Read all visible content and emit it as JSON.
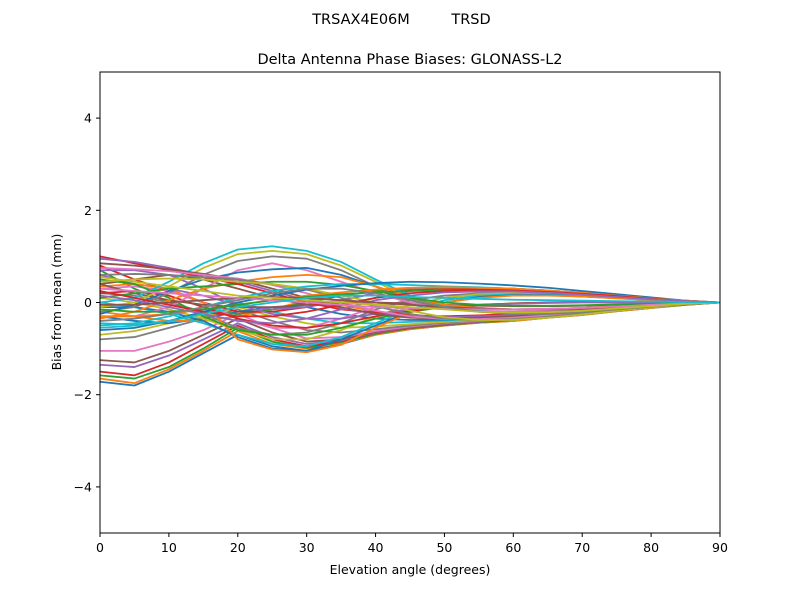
{
  "figure": {
    "suptitle_left": "TRSAX4E06M",
    "suptitle_right": "TRSD"
  },
  "chart_data": {
    "type": "line",
    "title": "Delta Antenna Phase Biases: GLONASS-L2",
    "xlabel": "Elevation angle (degrees)",
    "ylabel": "Bias from mean (mm)",
    "xlim": [
      0,
      90
    ],
    "ylim": [
      -5,
      5
    ],
    "xticks": [
      0,
      10,
      20,
      30,
      40,
      50,
      60,
      70,
      80,
      90
    ],
    "yticks": [
      -4,
      -2,
      0,
      2,
      4
    ],
    "ytick_labels": [
      "−4",
      "−2",
      "0",
      "2",
      "4"
    ],
    "grid": false,
    "legend": "none",
    "x": [
      0,
      5,
      10,
      15,
      20,
      25,
      30,
      35,
      40,
      45,
      50,
      55,
      60,
      65,
      70,
      75,
      80,
      85,
      90
    ],
    "palette": [
      "#1f77b4",
      "#ff7f0e",
      "#2ca02c",
      "#d62728",
      "#9467bd",
      "#8c564b",
      "#e377c2",
      "#7f7f7f",
      "#bcbd22",
      "#17becf"
    ],
    "series": [
      {
        "values": [
          -1.72,
          -1.8,
          -1.5,
          -1.1,
          -0.7,
          -0.95,
          -1.05,
          -0.9,
          -0.7,
          -0.58,
          -0.5,
          -0.44,
          -0.4,
          -0.33,
          -0.27,
          -0.19,
          -0.12,
          -0.05,
          0.0
        ]
      },
      {
        "values": [
          -1.65,
          -1.75,
          -1.45,
          -1.05,
          -0.62,
          -0.9,
          -1.0,
          -0.88,
          -0.7,
          -0.58,
          -0.5,
          -0.44,
          -0.4,
          -0.33,
          -0.27,
          -0.19,
          -0.12,
          -0.05,
          0.0
        ]
      },
      {
        "values": [
          -1.58,
          -1.65,
          -1.4,
          -1.0,
          -0.55,
          -0.85,
          -0.98,
          -0.86,
          -0.68,
          -0.56,
          -0.49,
          -0.43,
          -0.38,
          -0.32,
          -0.26,
          -0.18,
          -0.11,
          -0.05,
          0.0
        ]
      },
      {
        "values": [
          -1.5,
          -1.58,
          -1.3,
          -0.9,
          -0.5,
          -0.8,
          -0.95,
          -0.84,
          -0.66,
          -0.55,
          -0.48,
          -0.42,
          -0.37,
          -0.31,
          -0.25,
          -0.18,
          -0.11,
          -0.04,
          0.0
        ]
      },
      {
        "values": [
          -1.35,
          -1.4,
          -1.15,
          -0.8,
          -0.45,
          -0.75,
          -0.9,
          -0.82,
          -0.65,
          -0.54,
          -0.47,
          -0.42,
          -0.36,
          -0.3,
          -0.24,
          -0.17,
          -0.1,
          -0.04,
          0.0
        ]
      },
      {
        "values": [
          -1.25,
          -1.3,
          -1.05,
          -0.7,
          -0.35,
          -0.65,
          -0.85,
          -0.8,
          -0.64,
          -0.53,
          -0.46,
          -0.41,
          -0.36,
          -0.3,
          -0.24,
          -0.17,
          -0.1,
          -0.04,
          0.0
        ]
      },
      {
        "values": [
          -1.05,
          -1.05,
          -0.85,
          -0.6,
          -0.25,
          -0.55,
          -0.78,
          -0.75,
          -0.62,
          -0.52,
          -0.45,
          -0.4,
          -0.35,
          -0.29,
          -0.23,
          -0.16,
          -0.1,
          -0.04,
          0.0
        ]
      },
      {
        "values": [
          -0.8,
          -0.75,
          -0.55,
          -0.35,
          -0.15,
          -0.4,
          -0.6,
          -0.65,
          -0.58,
          -0.5,
          -0.44,
          -0.39,
          -0.34,
          -0.28,
          -0.22,
          -0.16,
          -0.09,
          -0.04,
          0.0
        ]
      },
      {
        "values": [
          -0.7,
          -0.62,
          -0.45,
          -0.3,
          -0.1,
          -0.3,
          -0.45,
          -0.55,
          -0.52,
          -0.47,
          -0.42,
          -0.38,
          -0.33,
          -0.28,
          -0.22,
          -0.15,
          -0.09,
          -0.04,
          0.0
        ]
      },
      {
        "values": [
          -0.45,
          -0.48,
          -0.4,
          -0.25,
          0.0,
          -0.2,
          -0.35,
          -0.45,
          -0.45,
          -0.42,
          -0.39,
          -0.35,
          -0.31,
          -0.26,
          -0.21,
          -0.15,
          -0.09,
          -0.03,
          0.0
        ]
      },
      {
        "values": [
          -0.3,
          -0.4,
          -0.45,
          -0.35,
          -0.2,
          -0.1,
          -0.1,
          -0.25,
          -0.35,
          -0.38,
          -0.37,
          -0.34,
          -0.3,
          -0.25,
          -0.2,
          -0.14,
          -0.08,
          -0.03,
          0.0
        ]
      },
      {
        "values": [
          -0.2,
          -0.3,
          -0.4,
          -0.4,
          -0.3,
          -0.15,
          0.05,
          -0.05,
          -0.2,
          -0.3,
          -0.33,
          -0.32,
          -0.29,
          -0.25,
          -0.2,
          -0.14,
          -0.08,
          -0.03,
          0.0
        ]
      },
      {
        "values": [
          0.7,
          0.3,
          0.0,
          -0.2,
          -0.25,
          -0.15,
          0.0,
          0.15,
          0.25,
          0.3,
          0.3,
          0.28,
          0.25,
          0.21,
          0.17,
          0.12,
          0.07,
          0.03,
          0.0
        ]
      },
      {
        "values": [
          0.8,
          0.5,
          0.25,
          0.0,
          -0.2,
          -0.2,
          -0.1,
          0.05,
          0.2,
          0.28,
          0.3,
          0.28,
          0.26,
          0.22,
          0.18,
          0.13,
          0.08,
          0.03,
          0.0
        ]
      },
      {
        "values": [
          0.6,
          0.4,
          0.3,
          0.15,
          -0.05,
          -0.15,
          -0.1,
          0.05,
          0.2,
          0.3,
          0.33,
          0.32,
          0.29,
          0.25,
          0.2,
          0.14,
          0.09,
          0.03,
          0.0
        ]
      },
      {
        "values": [
          0.4,
          0.5,
          0.6,
          0.5,
          0.3,
          0.1,
          -0.05,
          -0.05,
          0.1,
          0.25,
          0.32,
          0.32,
          0.3,
          0.26,
          0.21,
          0.15,
          0.09,
          0.04,
          0.0
        ]
      },
      {
        "values": [
          0.3,
          0.35,
          0.25,
          0.0,
          -0.35,
          -0.55,
          -0.55,
          -0.35,
          -0.1,
          0.05,
          0.15,
          0.18,
          0.18,
          0.16,
          0.13,
          0.09,
          0.06,
          0.02,
          0.0
        ]
      },
      {
        "values": [
          0.2,
          0.15,
          0.0,
          -0.25,
          -0.55,
          -0.7,
          -0.65,
          -0.45,
          -0.15,
          0.05,
          0.15,
          0.2,
          0.2,
          0.18,
          0.15,
          0.1,
          0.06,
          0.02,
          0.0
        ]
      },
      {
        "values": [
          0.1,
          0.0,
          -0.15,
          -0.35,
          -0.6,
          -0.8,
          -0.8,
          -0.6,
          -0.3,
          -0.05,
          0.1,
          0.18,
          0.2,
          0.18,
          0.15,
          0.1,
          0.06,
          0.02,
          0.0
        ]
      },
      {
        "values": [
          0.0,
          -0.1,
          -0.25,
          -0.45,
          -0.7,
          -0.9,
          -0.95,
          -0.75,
          -0.45,
          -0.15,
          0.05,
          0.15,
          0.18,
          0.17,
          0.14,
          0.1,
          0.06,
          0.02,
          0.0
        ]
      },
      {
        "values": [
          -0.1,
          -0.1,
          -0.2,
          -0.4,
          -0.75,
          -1.0,
          -1.05,
          -0.8,
          -0.5,
          -0.2,
          0.0,
          0.12,
          0.16,
          0.16,
          0.13,
          0.1,
          0.06,
          0.02,
          0.0
        ]
      },
      {
        "values": [
          0.35,
          0.4,
          0.3,
          0.0,
          -0.8,
          -1.02,
          -1.08,
          -0.92,
          -0.55,
          -0.22,
          0.0,
          0.1,
          0.15,
          0.15,
          0.13,
          0.09,
          0.05,
          0.02,
          0.0
        ]
      },
      {
        "values": [
          0.5,
          0.4,
          0.1,
          -0.3,
          -0.6,
          -0.7,
          -0.7,
          -0.55,
          -0.35,
          -0.2,
          -0.1,
          -0.05,
          -0.02,
          0.0,
          0.01,
          0.01,
          0.01,
          0.0,
          0.0
        ]
      },
      {
        "values": [
          0.2,
          0.25,
          0.15,
          -0.1,
          -0.35,
          -0.5,
          -0.55,
          -0.45,
          -0.3,
          -0.18,
          -0.1,
          -0.05,
          -0.02,
          0.0,
          0.01,
          0.01,
          0.01,
          0.0,
          0.0
        ]
      },
      {
        "values": [
          0.7,
          0.7,
          0.6,
          0.3,
          -0.05,
          -0.25,
          -0.35,
          -0.35,
          -0.25,
          -0.15,
          -0.1,
          -0.06,
          -0.03,
          -0.01,
          0.0,
          0.0,
          0.0,
          0.0,
          0.0
        ]
      },
      {
        "values": [
          0.4,
          0.2,
          0.05,
          -0.05,
          -0.1,
          -0.1,
          -0.05,
          0.0,
          0.0,
          -0.02,
          -0.05,
          -0.07,
          -0.08,
          -0.08,
          -0.07,
          -0.05,
          -0.03,
          -0.01,
          0.0
        ]
      },
      {
        "values": [
          -0.3,
          -0.3,
          -0.1,
          0.3,
          0.7,
          0.85,
          0.7,
          0.45,
          0.2,
          0.0,
          -0.12,
          -0.18,
          -0.2,
          -0.18,
          -0.15,
          -0.1,
          -0.06,
          -0.02,
          0.0
        ]
      },
      {
        "values": [
          -0.2,
          -0.1,
          0.2,
          0.6,
          0.9,
          1.0,
          0.95,
          0.7,
          0.35,
          0.05,
          -0.12,
          -0.2,
          -0.22,
          -0.2,
          -0.16,
          -0.11,
          -0.07,
          -0.03,
          0.0
        ]
      },
      {
        "values": [
          -0.1,
          0.0,
          0.35,
          0.75,
          1.05,
          1.12,
          1.05,
          0.8,
          0.45,
          0.1,
          -0.1,
          -0.2,
          -0.23,
          -0.21,
          -0.17,
          -0.12,
          -0.07,
          -0.03,
          0.0
        ]
      },
      {
        "values": [
          0.0,
          0.1,
          0.45,
          0.85,
          1.15,
          1.22,
          1.12,
          0.88,
          0.5,
          0.15,
          -0.08,
          -0.19,
          -0.23,
          -0.21,
          -0.17,
          -0.12,
          -0.07,
          -0.03,
          0.0
        ]
      },
      {
        "values": [
          -0.25,
          -0.05,
          0.25,
          0.5,
          0.65,
          0.72,
          0.75,
          0.6,
          0.35,
          0.1,
          -0.05,
          -0.12,
          -0.15,
          -0.14,
          -0.12,
          -0.08,
          -0.05,
          -0.02,
          0.0
        ]
      },
      {
        "values": [
          -0.35,
          -0.2,
          0.05,
          0.3,
          0.45,
          0.55,
          0.6,
          0.55,
          0.35,
          0.12,
          -0.05,
          -0.12,
          -0.15,
          -0.14,
          -0.12,
          -0.08,
          -0.05,
          -0.02,
          0.0
        ]
      },
      {
        "values": [
          0.1,
          0.2,
          0.3,
          0.35,
          0.4,
          0.45,
          0.45,
          0.38,
          0.25,
          0.1,
          0.0,
          -0.05,
          -0.07,
          -0.07,
          -0.06,
          -0.04,
          -0.03,
          -0.01,
          0.0
        ]
      },
      {
        "values": [
          1.0,
          0.85,
          0.7,
          0.55,
          0.4,
          0.2,
          0.0,
          -0.15,
          -0.22,
          -0.28,
          -0.3,
          -0.28,
          -0.25,
          -0.21,
          -0.17,
          -0.12,
          -0.07,
          -0.03,
          0.0
        ]
      },
      {
        "values": [
          0.95,
          0.88,
          0.75,
          0.6,
          0.45,
          0.25,
          0.05,
          -0.12,
          -0.25,
          -0.3,
          -0.32,
          -0.3,
          -0.27,
          -0.23,
          -0.18,
          -0.13,
          -0.08,
          -0.03,
          0.0
        ]
      },
      {
        "values": [
          0.85,
          0.8,
          0.72,
          0.62,
          0.5,
          0.3,
          0.1,
          -0.1,
          -0.25,
          -0.33,
          -0.35,
          -0.33,
          -0.3,
          -0.25,
          -0.2,
          -0.14,
          -0.08,
          -0.03,
          0.0
        ]
      },
      {
        "values": [
          0.75,
          0.72,
          0.68,
          0.6,
          0.52,
          0.38,
          0.2,
          0.0,
          -0.18,
          -0.3,
          -0.36,
          -0.36,
          -0.33,
          -0.28,
          -0.22,
          -0.15,
          -0.09,
          -0.04,
          0.0
        ]
      },
      {
        "values": [
          0.6,
          0.62,
          0.6,
          0.55,
          0.5,
          0.4,
          0.28,
          0.1,
          -0.08,
          -0.25,
          -0.35,
          -0.38,
          -0.36,
          -0.31,
          -0.24,
          -0.17,
          -0.1,
          -0.04,
          0.0
        ]
      },
      {
        "values": [
          0.45,
          0.5,
          0.52,
          0.5,
          0.45,
          0.4,
          0.3,
          0.15,
          0.0,
          -0.18,
          -0.32,
          -0.38,
          -0.38,
          -0.33,
          -0.26,
          -0.18,
          -0.11,
          -0.04,
          0.0
        ]
      },
      {
        "values": [
          -0.5,
          -0.45,
          -0.3,
          -0.1,
          0.1,
          0.25,
          0.35,
          0.4,
          0.4,
          0.38,
          0.35,
          0.33,
          0.3,
          0.26,
          0.21,
          0.15,
          0.09,
          0.04,
          0.0
        ]
      },
      {
        "values": [
          -0.6,
          -0.55,
          -0.4,
          -0.2,
          0.0,
          0.15,
          0.28,
          0.36,
          0.42,
          0.45,
          0.44,
          0.41,
          0.37,
          0.32,
          0.25,
          0.18,
          0.11,
          0.04,
          0.0
        ]
      },
      {
        "values": [
          -0.3,
          -0.3,
          -0.25,
          -0.15,
          -0.05,
          0.05,
          0.15,
          0.22,
          0.28,
          0.32,
          0.33,
          0.32,
          0.3,
          0.26,
          0.21,
          0.15,
          0.09,
          0.04,
          0.0
        ]
      },
      {
        "values": [
          -0.15,
          -0.2,
          -0.2,
          -0.15,
          -0.05,
          0.05,
          0.12,
          0.18,
          0.22,
          0.25,
          0.26,
          0.26,
          0.25,
          0.22,
          0.18,
          0.13,
          0.08,
          0.03,
          0.0
        ]
      },
      {
        "values": [
          0.25,
          0.1,
          -0.05,
          -0.2,
          -0.3,
          -0.3,
          -0.2,
          -0.05,
          0.1,
          0.2,
          0.25,
          0.27,
          0.26,
          0.23,
          0.19,
          0.14,
          0.08,
          0.03,
          0.0
        ]
      },
      {
        "values": [
          0.15,
          0.05,
          -0.1,
          -0.25,
          -0.4,
          -0.45,
          -0.35,
          -0.15,
          0.05,
          0.15,
          0.22,
          0.24,
          0.24,
          0.21,
          0.17,
          0.12,
          0.07,
          0.03,
          0.0
        ]
      },
      {
        "values": [
          -0.05,
          -0.05,
          0.0,
          0.05,
          0.1,
          0.12,
          0.1,
          0.05,
          0.0,
          -0.05,
          -0.1,
          -0.13,
          -0.15,
          -0.15,
          -0.13,
          -0.09,
          -0.06,
          -0.02,
          0.0
        ]
      },
      {
        "values": [
          0.3,
          0.25,
          0.2,
          0.15,
          0.1,
          0.05,
          0.0,
          -0.05,
          -0.1,
          -0.12,
          -0.14,
          -0.15,
          -0.15,
          -0.14,
          -0.12,
          -0.09,
          -0.05,
          -0.02,
          0.0
        ]
      },
      {
        "values": [
          -0.4,
          -0.35,
          -0.25,
          -0.1,
          0.05,
          0.2,
          0.3,
          0.3,
          0.2,
          0.05,
          -0.1,
          -0.2,
          -0.25,
          -0.25,
          -0.21,
          -0.15,
          -0.09,
          -0.04,
          0.0
        ]
      },
      {
        "values": [
          0.55,
          0.45,
          0.35,
          0.25,
          0.15,
          0.1,
          0.05,
          0.0,
          -0.05,
          -0.1,
          -0.15,
          -0.2,
          -0.22,
          -0.21,
          -0.18,
          -0.13,
          -0.08,
          -0.03,
          0.0
        ]
      },
      {
        "values": [
          -0.55,
          -0.5,
          -0.4,
          -0.25,
          -0.1,
          0.0,
          0.1,
          0.15,
          0.15,
          0.12,
          0.1,
          0.08,
          0.06,
          0.05,
          0.04,
          0.03,
          0.02,
          0.01,
          0.0
        ]
      }
    ]
  }
}
